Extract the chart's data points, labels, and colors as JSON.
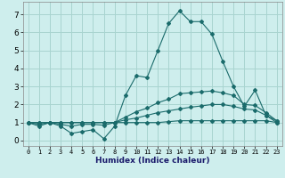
{
  "xlabel": "Humidex (Indice chaleur)",
  "ylabel": "",
  "background_color": "#ceeeed",
  "grid_color": "#a8d4d0",
  "line_color": "#1a6b6b",
  "xlim": [
    -0.5,
    23.5
  ],
  "ylim": [
    -0.3,
    7.7
  ],
  "xticks": [
    0,
    1,
    2,
    3,
    4,
    5,
    6,
    7,
    8,
    9,
    10,
    11,
    12,
    13,
    14,
    15,
    16,
    17,
    18,
    19,
    20,
    21,
    22,
    23
  ],
  "yticks": [
    0,
    1,
    2,
    3,
    4,
    5,
    6,
    7
  ],
  "series": [
    [
      1.0,
      0.8,
      1.0,
      0.8,
      0.4,
      0.5,
      0.6,
      0.1,
      0.8,
      2.5,
      3.6,
      3.5,
      5.0,
      6.5,
      7.2,
      6.6,
      6.6,
      5.9,
      4.4,
      3.0,
      1.9,
      2.8,
      1.4,
      1.0
    ],
    [
      1.0,
      0.9,
      1.0,
      0.9,
      0.8,
      0.9,
      0.9,
      0.85,
      1.0,
      1.3,
      1.6,
      1.8,
      2.1,
      2.3,
      2.6,
      2.65,
      2.7,
      2.75,
      2.65,
      2.5,
      2.0,
      1.95,
      1.55,
      1.1
    ],
    [
      1.0,
      0.98,
      1.0,
      1.0,
      1.0,
      1.0,
      1.0,
      1.0,
      1.0,
      1.15,
      1.25,
      1.4,
      1.55,
      1.65,
      1.75,
      1.85,
      1.92,
      2.0,
      2.0,
      1.9,
      1.75,
      1.7,
      1.4,
      1.1
    ],
    [
      1.0,
      1.0,
      1.0,
      1.0,
      1.0,
      1.0,
      1.0,
      1.0,
      1.0,
      1.0,
      1.0,
      1.0,
      1.0,
      1.05,
      1.1,
      1.1,
      1.1,
      1.1,
      1.1,
      1.1,
      1.1,
      1.1,
      1.1,
      1.0
    ]
  ]
}
